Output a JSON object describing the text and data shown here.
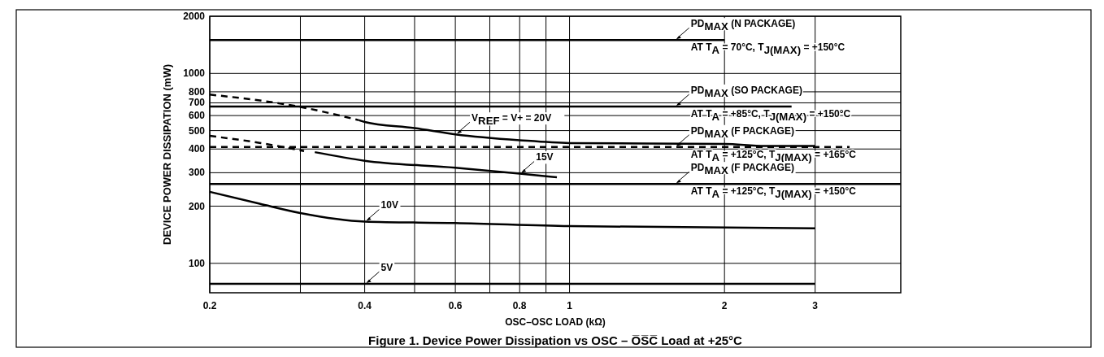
{
  "chart_data": {
    "type": "line",
    "title": "Figure 1.  Device Power Dissipation vs OSC – O̅S̅C̅ Load at +25°C",
    "xlabel": "OSC–OSC LOAD (kΩ)",
    "ylabel": "DEVICE POWER DISSIPATION (mW)",
    "log": "xy",
    "xlim": [
      0.2,
      4.4
    ],
    "ylim": [
      70,
      2000
    ],
    "xticks": [
      0.2,
      {
        "value": 0.3,
        "label": null
      },
      0.4,
      {
        "value": 0.5,
        "label": null
      },
      0.6,
      {
        "value": 0.7,
        "label": null
      },
      0.8,
      {
        "value": 0.9,
        "label": null
      },
      1,
      2,
      3
    ],
    "yticks": [
      100,
      200,
      300,
      400,
      500,
      600,
      700,
      800,
      1000,
      2000
    ],
    "grid": true,
    "series": [
      {
        "color": "#000000",
        "line_style": "solid",
        "x": [
          0.2,
          2
        ],
        "values": [
          1500,
          1500
        ]
      },
      {
        "color": "#000000",
        "line_style": "solid",
        "x": [
          0.2,
          2.7
        ],
        "values": [
          670,
          670
        ]
      },
      {
        "color": "#000000",
        "line_style": "dashed",
        "x": [
          0.2,
          3.5
        ],
        "values": [
          410,
          410
        ]
      },
      {
        "color": "#000000",
        "line_style": "solid",
        "x": [
          0.2,
          4.4
        ],
        "values": [
          262,
          262
        ]
      },
      {
        "color": "#000000",
        "line_style": "solid",
        "x": [
          0.2,
          3
        ],
        "values": [
          78,
          78
        ]
      },
      {
        "color": "#000000",
        "line_style": "dashed",
        "x": [
          0.2,
          0.3,
          0.39
        ],
        "values": [
          774,
          666,
          567
        ]
      },
      {
        "color": "#000000",
        "line_style": "solid",
        "x": [
          0.39,
          0.4,
          0.5,
          0.6,
          0.8,
          1,
          2,
          2.4,
          3
        ],
        "values": [
          567,
          555,
          515,
          478,
          445,
          430,
          425,
          415,
          415
        ]
      },
      {
        "color": "#000000",
        "line_style": "dashed",
        "x": [
          0.2,
          0.25,
          0.305
        ],
        "values": [
          469,
          431,
          390
        ]
      },
      {
        "color": "#000000",
        "line_style": "solid",
        "x": [
          0.32,
          0.4,
          0.6,
          0.8,
          0.945
        ],
        "values": [
          385,
          347,
          319,
          297,
          284
        ]
      },
      {
        "color": "#000000",
        "line_style": "solid",
        "x": [
          0.2,
          0.25,
          0.3,
          0.4,
          0.6,
          1,
          3
        ],
        "values": [
          238,
          206,
          184,
          166,
          163,
          157,
          153
        ]
      }
    ],
    "annotations": [
      {
        "text": "PD$_{MAX}$ (N PACKAGE)",
        "x": 1.6,
        "y": 1500
      },
      "AT T$_{A}$ = 70°C, T$_{J(MAX)}$ = +150°C",
      {
        "text": "PD$_{MAX}$ (SO PACKAGE)",
        "x": 1.6,
        "y": 670
      },
      "AT T$_{A}$ = +85°C, T$_{J(MAX)}$ = +150°C",
      {
        "text": "V$_{REF}$ = V+ = 20V",
        "x": 0.6,
        "y": 478
      },
      {
        "text": "PD$_{MAX}$ (F PACKAGE)",
        "x": 1.6,
        "y": 410
      },
      "AT T$_{A}$ = +125°C, T$_{J(MAX)}$ = +165°C",
      {
        "text": "15V",
        "x": 0.8,
        "y": 297
      },
      {
        "text": "PD$_{MAX}$ (F PACKAGE)",
        "x": 1.6,
        "y": 262
      },
      "AT T$_{A}$ = +125°C, T$_{J(MAX)}$ = +150°C",
      {
        "text": "10V",
        "x": 0.4,
        "y": 166
      },
      {
        "text": "5V",
        "x": 0.4,
        "y": 78
      }
    ]
  }
}
